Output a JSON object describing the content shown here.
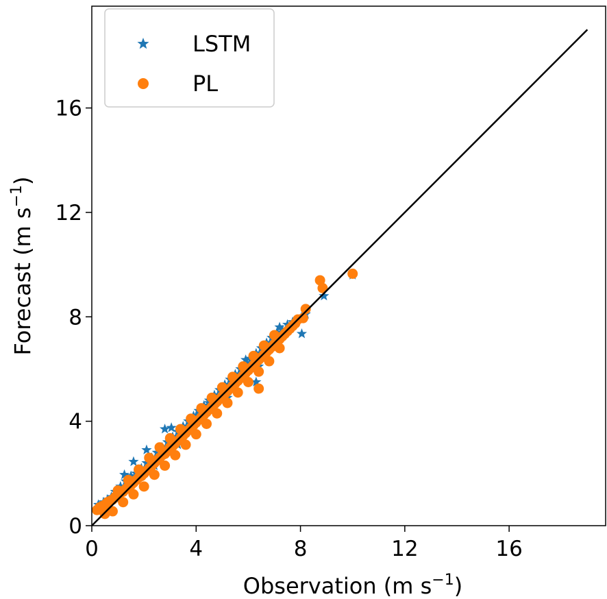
{
  "chart_data": {
    "type": "scatter",
    "title": "",
    "xlabel": "Observation",
    "xlabel_unit": "(m s",
    "xlabel_exp": "−1",
    "xlabel_close": ")",
    "ylabel": "Forecast",
    "ylabel_unit": "(m s",
    "ylabel_exp": "−1",
    "ylabel_close": ")",
    "xlim": [
      0,
      19.7
    ],
    "ylim": [
      0,
      19.9
    ],
    "xticks": [
      "0",
      "4",
      "8",
      "12",
      "16"
    ],
    "yticks": [
      "0",
      "4",
      "8",
      "12",
      "16"
    ],
    "grid": false,
    "legend_position": "top-left",
    "reference_line": {
      "from": [
        0,
        0
      ],
      "to": [
        19,
        19
      ],
      "color": "#000000"
    },
    "series": [
      {
        "name": "LSTM",
        "marker": "star",
        "color": "#1f77b4",
        "x": [
          0.25,
          0.45,
          0.6,
          0.75,
          0.9,
          1.1,
          1.3,
          1.5,
          1.7,
          1.9,
          2.1,
          2.3,
          2.5,
          2.7,
          2.9,
          3.1,
          3.3,
          3.5,
          3.7,
          3.9,
          4.1,
          4.3,
          4.5,
          4.7,
          4.9,
          5.1,
          5.3,
          5.5,
          5.7,
          5.9,
          6.1,
          6.3,
          6.5,
          6.7,
          6.9,
          7.1,
          7.3,
          7.5,
          7.7,
          8.05,
          8.2,
          8.9,
          10.0,
          1.25,
          1.6,
          2.1,
          2.8,
          3.05,
          3.5,
          4.0,
          4.5,
          5.0,
          5.5,
          5.9,
          6.3,
          6.4,
          6.8,
          7.2,
          0.5,
          0.9,
          1.5,
          2.4,
          3.3,
          4.2,
          5.2
        ],
        "y": [
          0.8,
          0.9,
          1.0,
          1.1,
          1.3,
          1.5,
          1.7,
          1.9,
          2.0,
          2.2,
          2.4,
          2.6,
          2.8,
          3.0,
          3.2,
          3.4,
          3.6,
          3.8,
          4.0,
          4.2,
          4.4,
          4.6,
          4.8,
          5.0,
          5.2,
          5.4,
          5.6,
          5.8,
          6.0,
          6.2,
          6.4,
          6.6,
          6.8,
          7.0,
          7.2,
          7.4,
          7.5,
          7.7,
          7.8,
          7.35,
          8.1,
          8.8,
          9.6,
          1.95,
          2.45,
          2.9,
          3.7,
          3.75,
          3.6,
          4.2,
          4.7,
          5.3,
          5.6,
          6.35,
          5.5,
          6.1,
          6.9,
          7.6,
          0.6,
          1.05,
          1.6,
          2.3,
          3.1,
          4.0,
          4.9
        ]
      },
      {
        "name": "PL",
        "marker": "circle",
        "color": "#ff7f0e",
        "x": [
          0.2,
          0.3,
          0.4,
          0.5,
          0.6,
          0.7,
          0.8,
          0.9,
          1.0,
          1.1,
          1.2,
          1.3,
          1.4,
          1.5,
          1.6,
          1.7,
          1.8,
          1.9,
          2.0,
          2.1,
          2.2,
          2.3,
          2.4,
          2.5,
          2.6,
          2.7,
          2.8,
          2.9,
          3.0,
          3.1,
          3.2,
          3.3,
          3.4,
          3.5,
          3.6,
          3.7,
          3.8,
          3.9,
          4.0,
          4.1,
          4.2,
          4.3,
          4.4,
          4.5,
          4.6,
          4.7,
          4.8,
          4.9,
          5.0,
          5.1,
          5.2,
          5.3,
          5.4,
          5.5,
          5.6,
          5.7,
          5.8,
          5.9,
          6.0,
          6.1,
          6.2,
          6.3,
          6.4,
          6.5,
          6.6,
          6.7,
          6.8,
          6.9,
          7.0,
          7.1,
          7.2,
          7.3,
          7.4,
          7.5,
          7.6,
          7.7,
          7.8,
          7.9,
          8.1,
          8.2,
          8.75,
          8.85,
          10.0,
          6.4,
          0.5,
          0.8,
          1.2,
          1.6,
          2.0,
          2.4,
          2.8,
          3.2,
          3.6,
          4.0,
          4.4,
          4.8,
          5.2,
          5.6,
          6.0,
          6.4,
          6.8,
          7.2,
          0.6,
          1.0,
          1.4,
          1.8,
          2.2,
          2.6,
          3.0,
          3.4,
          3.8,
          4.2,
          4.6,
          5.0,
          5.4,
          5.8,
          6.2,
          6.6,
          7.0
        ],
        "y": [
          0.6,
          0.7,
          0.75,
          0.8,
          0.85,
          0.95,
          1.0,
          1.1,
          1.15,
          1.25,
          1.3,
          1.4,
          1.5,
          1.55,
          1.65,
          1.75,
          1.85,
          1.9,
          2.0,
          2.1,
          2.2,
          2.3,
          2.4,
          2.5,
          2.6,
          2.7,
          2.75,
          2.85,
          3.0,
          3.05,
          3.15,
          3.25,
          3.35,
          3.45,
          3.55,
          3.65,
          3.75,
          3.85,
          3.95,
          4.05,
          4.15,
          4.25,
          4.35,
          4.45,
          4.55,
          4.65,
          4.75,
          4.85,
          4.95,
          5.05,
          5.15,
          5.25,
          5.35,
          5.45,
          5.55,
          5.65,
          5.75,
          5.85,
          5.95,
          6.05,
          6.15,
          6.25,
          6.35,
          6.45,
          6.55,
          6.65,
          6.75,
          6.85,
          6.95,
          7.05,
          7.15,
          7.25,
          7.35,
          7.45,
          7.55,
          7.65,
          7.75,
          7.9,
          7.95,
          8.3,
          9.4,
          9.1,
          9.65,
          5.25,
          0.45,
          0.55,
          0.9,
          1.2,
          1.5,
          1.95,
          2.3,
          2.7,
          3.1,
          3.5,
          3.9,
          4.3,
          4.7,
          5.1,
          5.5,
          5.9,
          6.3,
          6.8,
          0.9,
          1.35,
          1.75,
          2.15,
          2.6,
          3.0,
          3.35,
          3.7,
          4.1,
          4.5,
          4.9,
          5.3,
          5.7,
          6.1,
          6.5,
          6.9,
          7.3
        ]
      }
    ]
  }
}
